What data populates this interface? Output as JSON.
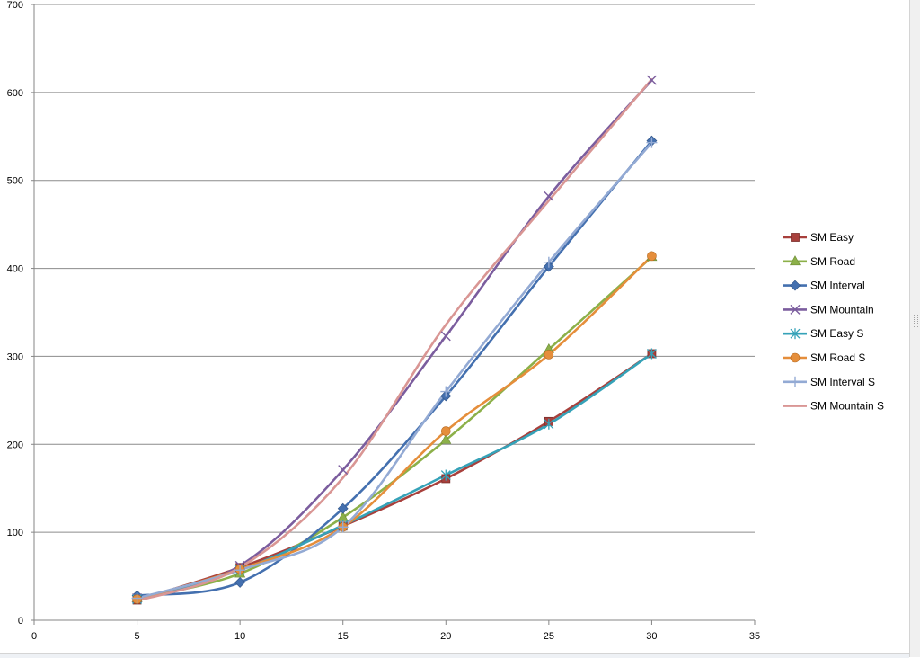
{
  "chart_data": {
    "type": "line",
    "smooth": true,
    "title": "",
    "xlabel": "",
    "ylabel": "",
    "xlim": [
      0,
      35
    ],
    "ylim": [
      0,
      700
    ],
    "x_ticks": [
      0,
      5,
      10,
      15,
      20,
      25,
      30,
      35
    ],
    "y_ticks": [
      0,
      100,
      200,
      300,
      400,
      500,
      600,
      700
    ],
    "grid": {
      "horizontal": true,
      "vertical": false
    },
    "legend": {
      "position": "right"
    },
    "x": [
      5,
      10,
      15,
      20,
      25,
      30
    ],
    "series": [
      {
        "name": "SM Easy",
        "color": "#A8403C",
        "marker": "square",
        "values": [
          23,
          60,
          107,
          161,
          226,
          303
        ]
      },
      {
        "name": "SM Road",
        "color": "#8CB049",
        "marker": "triangle",
        "values": [
          25,
          53,
          117,
          205,
          308,
          413
        ]
      },
      {
        "name": "SM Interval",
        "color": "#4470AF",
        "marker": "diamond",
        "values": [
          28,
          43,
          127,
          255,
          402,
          545
        ]
      },
      {
        "name": "SM Mountain",
        "color": "#7B5D9E",
        "marker": "x",
        "values": [
          25,
          62,
          171,
          323,
          482,
          614
        ]
      },
      {
        "name": "SM Easy S",
        "color": "#35A2B8",
        "marker": "star",
        "values": [
          24,
          57,
          108,
          165,
          223,
          303
        ]
      },
      {
        "name": "SM Road S",
        "color": "#E58E3B",
        "marker": "circle",
        "values": [
          24,
          58,
          106,
          215,
          302,
          414
        ]
      },
      {
        "name": "SM Interval S",
        "color": "#93AAD4",
        "marker": "plus",
        "values": [
          25,
          57,
          106,
          260,
          407,
          543
        ]
      },
      {
        "name": "SM Mountain S",
        "color": "#D99694",
        "marker": "none",
        "values": [
          22,
          60,
          162,
          336,
          477,
          615
        ]
      }
    ]
  }
}
